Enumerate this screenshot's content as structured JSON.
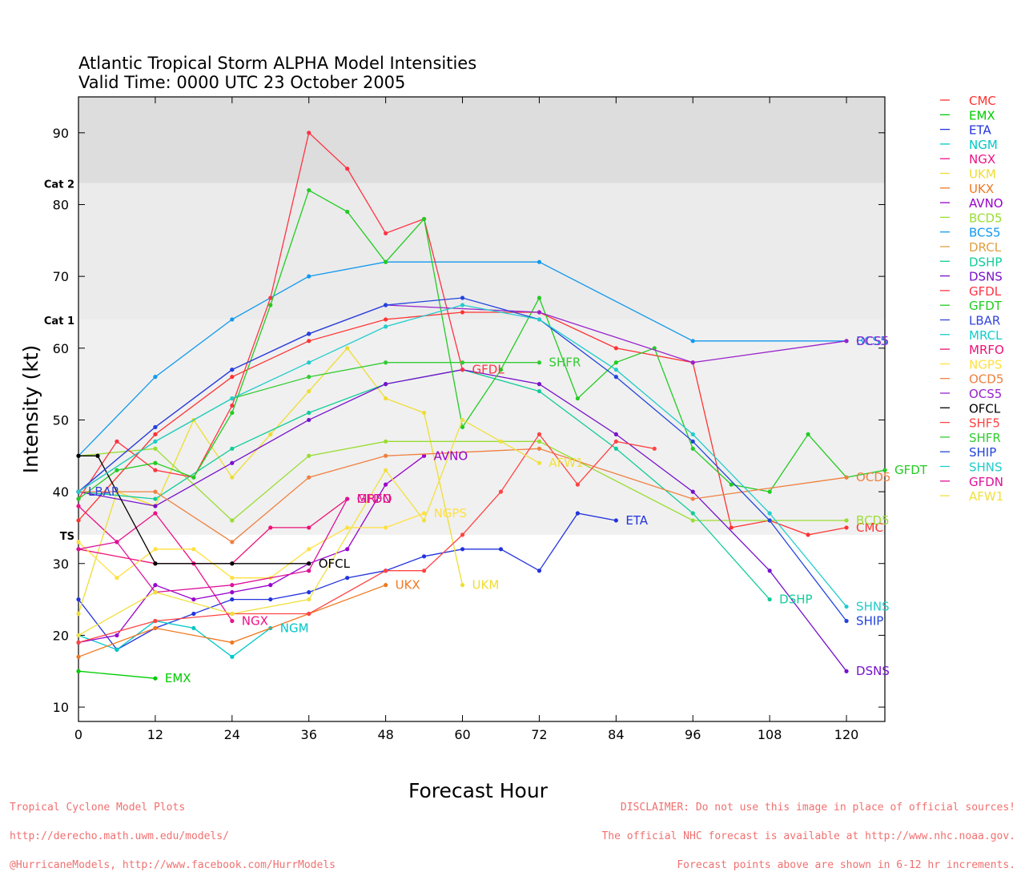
{
  "chart_data": {
    "type": "line",
    "title": "Atlantic Tropical Storm ALPHA Model Intensities",
    "subtitle": "Valid Time: 0000 UTC 23 October 2005",
    "xlabel": "Forecast Hour",
    "ylabel": "Intensity (kt)",
    "xlim": [
      0,
      126
    ],
    "ylim": [
      8,
      95
    ],
    "xticks": [
      0,
      12,
      24,
      36,
      48,
      60,
      72,
      84,
      96,
      108,
      120
    ],
    "yticks": [
      10,
      20,
      30,
      40,
      50,
      60,
      70,
      80,
      90
    ],
    "grid": false,
    "legend_position": "right",
    "bands": [
      {
        "from": 83,
        "to": 95,
        "color": "#dddddd",
        "label": "Cat 2"
      },
      {
        "from": 64,
        "to": 83,
        "color": "#ebebeb",
        "label": "Cat 1"
      },
      {
        "from": 34,
        "to": 64,
        "color": "#f0f0f0",
        "label": "TS"
      }
    ],
    "series": [
      {
        "name": "CMC",
        "color": "#ff3333",
        "x": [
          0,
          12,
          24,
          36,
          48,
          60,
          72,
          84,
          96,
          102,
          108,
          114,
          120
        ],
        "y": [
          36,
          48,
          56,
          61,
          64,
          65,
          65,
          60,
          58,
          35,
          36,
          34,
          35
        ],
        "label": "CMC"
      },
      {
        "name": "EMX",
        "color": "#00cc00",
        "x": [
          0,
          12
        ],
        "y": [
          15,
          14
        ],
        "label": "EMX"
      },
      {
        "name": "ETA",
        "color": "#2233dd",
        "x": [
          0,
          6,
          12,
          18,
          24,
          30,
          36,
          42,
          48,
          54,
          60,
          66,
          72,
          78,
          84
        ],
        "y": [
          25,
          18,
          21,
          23,
          25,
          25,
          26,
          28,
          29,
          31,
          32,
          32,
          29,
          37,
          36
        ],
        "label": "ETA"
      },
      {
        "name": "NGM",
        "color": "#00c8c8",
        "x": [
          0,
          6,
          12,
          18,
          24,
          30
        ],
        "y": [
          20,
          18,
          22,
          21,
          17,
          21
        ],
        "label": "NGM"
      },
      {
        "name": "NGX",
        "color": "#ee1188",
        "x": [
          0,
          6,
          12,
          18,
          24
        ],
        "y": [
          38,
          33,
          37,
          30,
          22
        ],
        "label": "NGX"
      },
      {
        "name": "UKM",
        "color": "#eedd33",
        "x": [
          0,
          6,
          12,
          18,
          24,
          30,
          36,
          42,
          48,
          54,
          60
        ],
        "y": [
          23,
          40,
          38,
          50,
          42,
          48,
          54,
          60,
          53,
          51,
          27
        ],
        "label": "UKM"
      },
      {
        "name": "UKX",
        "color": "#f07820",
        "x": [
          0,
          12,
          24,
          36,
          48
        ],
        "y": [
          17,
          21,
          19,
          23,
          27
        ],
        "label": "UKX"
      },
      {
        "name": "AVNO",
        "color": "#9900cc",
        "x": [
          0,
          6,
          12,
          18,
          24,
          30,
          36,
          42,
          48,
          54
        ],
        "y": [
          19,
          20,
          27,
          25,
          26,
          27,
          30,
          32,
          41,
          45
        ],
        "label": "AVNO"
      },
      {
        "name": "BCD5",
        "color": "#99dd33",
        "x": [
          0,
          12,
          24,
          36,
          48,
          72,
          96,
          120
        ],
        "y": [
          45,
          46,
          36,
          45,
          47,
          47,
          36,
          36
        ],
        "label": "BCD5"
      },
      {
        "name": "BCS5",
        "color": "#1199ee",
        "x": [
          0,
          12,
          24,
          36,
          48,
          72,
          96,
          120
        ],
        "y": [
          45,
          56,
          64,
          70,
          72,
          72,
          61,
          61
        ],
        "label": "BCS5"
      },
      {
        "name": "DRCL",
        "color": "#e0a040",
        "x": [],
        "y": [],
        "label": ""
      },
      {
        "name": "DSHP",
        "color": "#11cc99",
        "x": [
          0,
          12,
          24,
          36,
          48,
          60,
          72,
          84,
          96,
          108
        ],
        "y": [
          40,
          39,
          46,
          51,
          55,
          57,
          54,
          46,
          37,
          25
        ],
        "label": "DSHP"
      },
      {
        "name": "DSNS",
        "color": "#7711cc",
        "x": [
          0,
          12,
          24,
          36,
          48,
          60,
          72,
          84,
          96,
          108,
          120
        ],
        "y": [
          40,
          38,
          44,
          50,
          55,
          57,
          55,
          48,
          40,
          29,
          15
        ],
        "label": "DSNS"
      },
      {
        "name": "GFDL",
        "color": "#ff3344",
        "x": [
          0,
          6,
          12,
          18,
          24,
          30,
          36,
          42,
          48,
          54,
          60
        ],
        "y": [
          39,
          47,
          43,
          42,
          52,
          67,
          90,
          85,
          76,
          78,
          57
        ],
        "label": "GFDL"
      },
      {
        "name": "GFDT",
        "color": "#22cc22",
        "x": [
          0,
          6,
          12,
          18,
          24,
          30,
          36,
          42,
          48,
          54,
          60,
          66,
          72,
          78,
          84,
          90,
          96,
          102,
          108,
          114,
          120,
          126
        ],
        "y": [
          39,
          43,
          44,
          42,
          51,
          66,
          82,
          79,
          72,
          78,
          49,
          57,
          67,
          53,
          58,
          60,
          46,
          41,
          40,
          48,
          42,
          43
        ],
        "label": "GFDT"
      },
      {
        "name": "LBAR",
        "color": "#3344dd",
        "x": [
          0
        ],
        "y": [
          40
        ],
        "label": "LBAR"
      },
      {
        "name": "MRCL",
        "color": "#11cccc",
        "x": [],
        "y": [],
        "label": ""
      },
      {
        "name": "MRFO",
        "color": "#ee1177",
        "x": [
          0,
          12,
          24,
          30,
          36,
          42
        ],
        "y": [
          32,
          30,
          30,
          35,
          35,
          39
        ],
        "label": "MRFO"
      },
      {
        "name": "NGPS",
        "color": "#ffe040",
        "x": [
          0,
          6,
          12,
          18,
          24,
          30,
          36,
          42,
          48,
          54
        ],
        "y": [
          33,
          28,
          32,
          32,
          28,
          28,
          32,
          35,
          35,
          37
        ],
        "label": "NGPS"
      },
      {
        "name": "OCD5",
        "color": "#f08040",
        "x": [
          0,
          12,
          24,
          36,
          48,
          72,
          96,
          120
        ],
        "y": [
          40,
          40,
          33,
          42,
          45,
          46,
          39,
          42
        ],
        "label": "OCD5"
      },
      {
        "name": "OCS5",
        "color": "#9922cc",
        "x": [
          0,
          12,
          24,
          36,
          48,
          72,
          96,
          120
        ],
        "y": [
          40,
          49,
          57,
          62,
          66,
          65,
          58,
          61
        ],
        "label": "OCS5"
      },
      {
        "name": "OFCL",
        "color": "#000000",
        "x": [
          0,
          3,
          12,
          24,
          36
        ],
        "y": [
          45,
          45,
          30,
          30,
          30
        ],
        "label": "OFCL"
      },
      {
        "name": "SHF5",
        "color": "#ff4444",
        "x": [
          0,
          12,
          24,
          36,
          48,
          54,
          60,
          66,
          72,
          78,
          84,
          90
        ],
        "y": [
          19,
          22,
          23,
          23,
          29,
          29,
          34,
          40,
          48,
          41,
          47,
          46
        ],
        "label": ""
      },
      {
        "name": "SHFR",
        "color": "#33cc33",
        "x": [
          0,
          12,
          24,
          36,
          48,
          60,
          72
        ],
        "y": [
          40,
          47,
          53,
          56,
          58,
          58,
          58
        ],
        "label": "SHFR"
      },
      {
        "name": "SHIP",
        "color": "#2244dd",
        "x": [
          0,
          12,
          24,
          36,
          48,
          60,
          72,
          84,
          96,
          108,
          120
        ],
        "y": [
          40,
          49,
          57,
          62,
          66,
          67,
          64,
          56,
          47,
          36,
          22
        ],
        "label": "SHIP"
      },
      {
        "name": "SHNS",
        "color": "#22cccc",
        "x": [
          0,
          12,
          24,
          36,
          48,
          60,
          72,
          84,
          96,
          108,
          120
        ],
        "y": [
          40,
          47,
          53,
          58,
          63,
          66,
          64,
          57,
          48,
          37,
          24
        ],
        "label": "SHNS"
      },
      {
        "name": "GFDN",
        "color": "#dd1199",
        "x": [
          0,
          6,
          12,
          24,
          36,
          42
        ],
        "y": [
          32,
          33,
          26,
          27,
          29,
          39
        ],
        "label": "GFDN"
      },
      {
        "name": "AFW1",
        "color": "#f0e040",
        "x": [
          0,
          12,
          24,
          36,
          48,
          54,
          60,
          66,
          72
        ],
        "y": [
          20,
          26,
          23,
          25,
          43,
          36,
          50,
          47,
          44
        ],
        "label": "AFW1"
      }
    ]
  },
  "footer": {
    "left_line1": "Tropical Cyclone Model Plots",
    "left_line2": "http://derecho.math.uwm.edu/models/",
    "left_line3": "@HurricaneModels, http://www.facebook.com/HurrModels",
    "right_line1": "DISCLAIMER: Do not use this image in place of official sources!",
    "right_line2": "The official NHC forecast is available at http://www.nhc.noaa.gov.",
    "right_line3": "Forecast points above are shown in 6-12 hr increments."
  }
}
